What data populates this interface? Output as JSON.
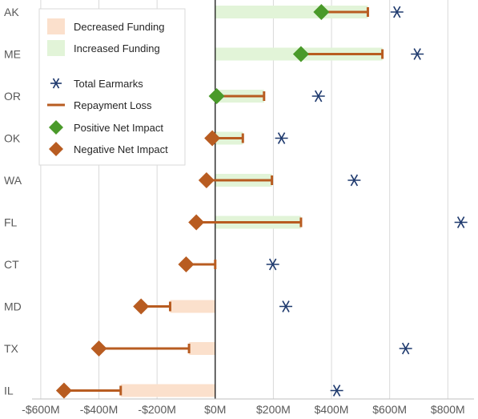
{
  "chart_data": {
    "type": "bar",
    "title": "",
    "xlabel": "",
    "ylabel": "",
    "xlim": [
      -630,
      890
    ],
    "x_ticks": [
      {
        "value": -600,
        "label": "-$600M"
      },
      {
        "value": -400,
        "label": "-$400M"
      },
      {
        "value": -200,
        "label": "-$200M"
      },
      {
        "value": 0,
        "label": "$0M"
      },
      {
        "value": 200,
        "label": "$200M"
      },
      {
        "value": 400,
        "label": "$400M"
      },
      {
        "value": 600,
        "label": "$600M"
      },
      {
        "value": 800,
        "label": "$800M"
      }
    ],
    "grid": true,
    "legend_position": "top-left",
    "categories": [
      "AK",
      "ME",
      "OR",
      "OK",
      "WA",
      "FL",
      "CT",
      "MD",
      "TX",
      "IL"
    ],
    "series": [
      {
        "name": "Decreased Funding",
        "kind": "bar",
        "color": "#fbe0cc",
        "values": [
          0,
          0,
          0,
          0,
          0,
          0,
          0,
          -155,
          -90,
          -325
        ]
      },
      {
        "name": "Increased Funding",
        "kind": "bar",
        "color": "#e2f4d8",
        "values": [
          525,
          575,
          168,
          95,
          195,
          295,
          0,
          0,
          0,
          0
        ]
      },
      {
        "name": "Total Earmarks",
        "kind": "marker",
        "marker": "asterisk",
        "color": "#1f3a6e",
        "values": [
          625,
          695,
          355,
          228,
          478,
          845,
          198,
          243,
          655,
          418
        ]
      },
      {
        "name": "Repayment Loss",
        "kind": "range",
        "color": "#b85c21",
        "from": [
          365,
          295,
          5,
          -10,
          -30,
          -65,
          -100,
          -255,
          -400,
          -520
        ],
        "to": [
          525,
          575,
          168,
          95,
          195,
          295,
          0,
          -155,
          -90,
          -325
        ]
      },
      {
        "name": "Positive Net Impact",
        "kind": "marker",
        "marker": "diamond",
        "color": "#4a9a2a",
        "values": [
          365,
          295,
          5,
          null,
          null,
          null,
          null,
          null,
          null,
          null
        ]
      },
      {
        "name": "Negative Net Impact",
        "kind": "marker",
        "marker": "diamond",
        "color": "#b85c21",
        "values": [
          null,
          null,
          null,
          -10,
          -30,
          -65,
          -100,
          -255,
          -400,
          -520
        ]
      }
    ]
  }
}
